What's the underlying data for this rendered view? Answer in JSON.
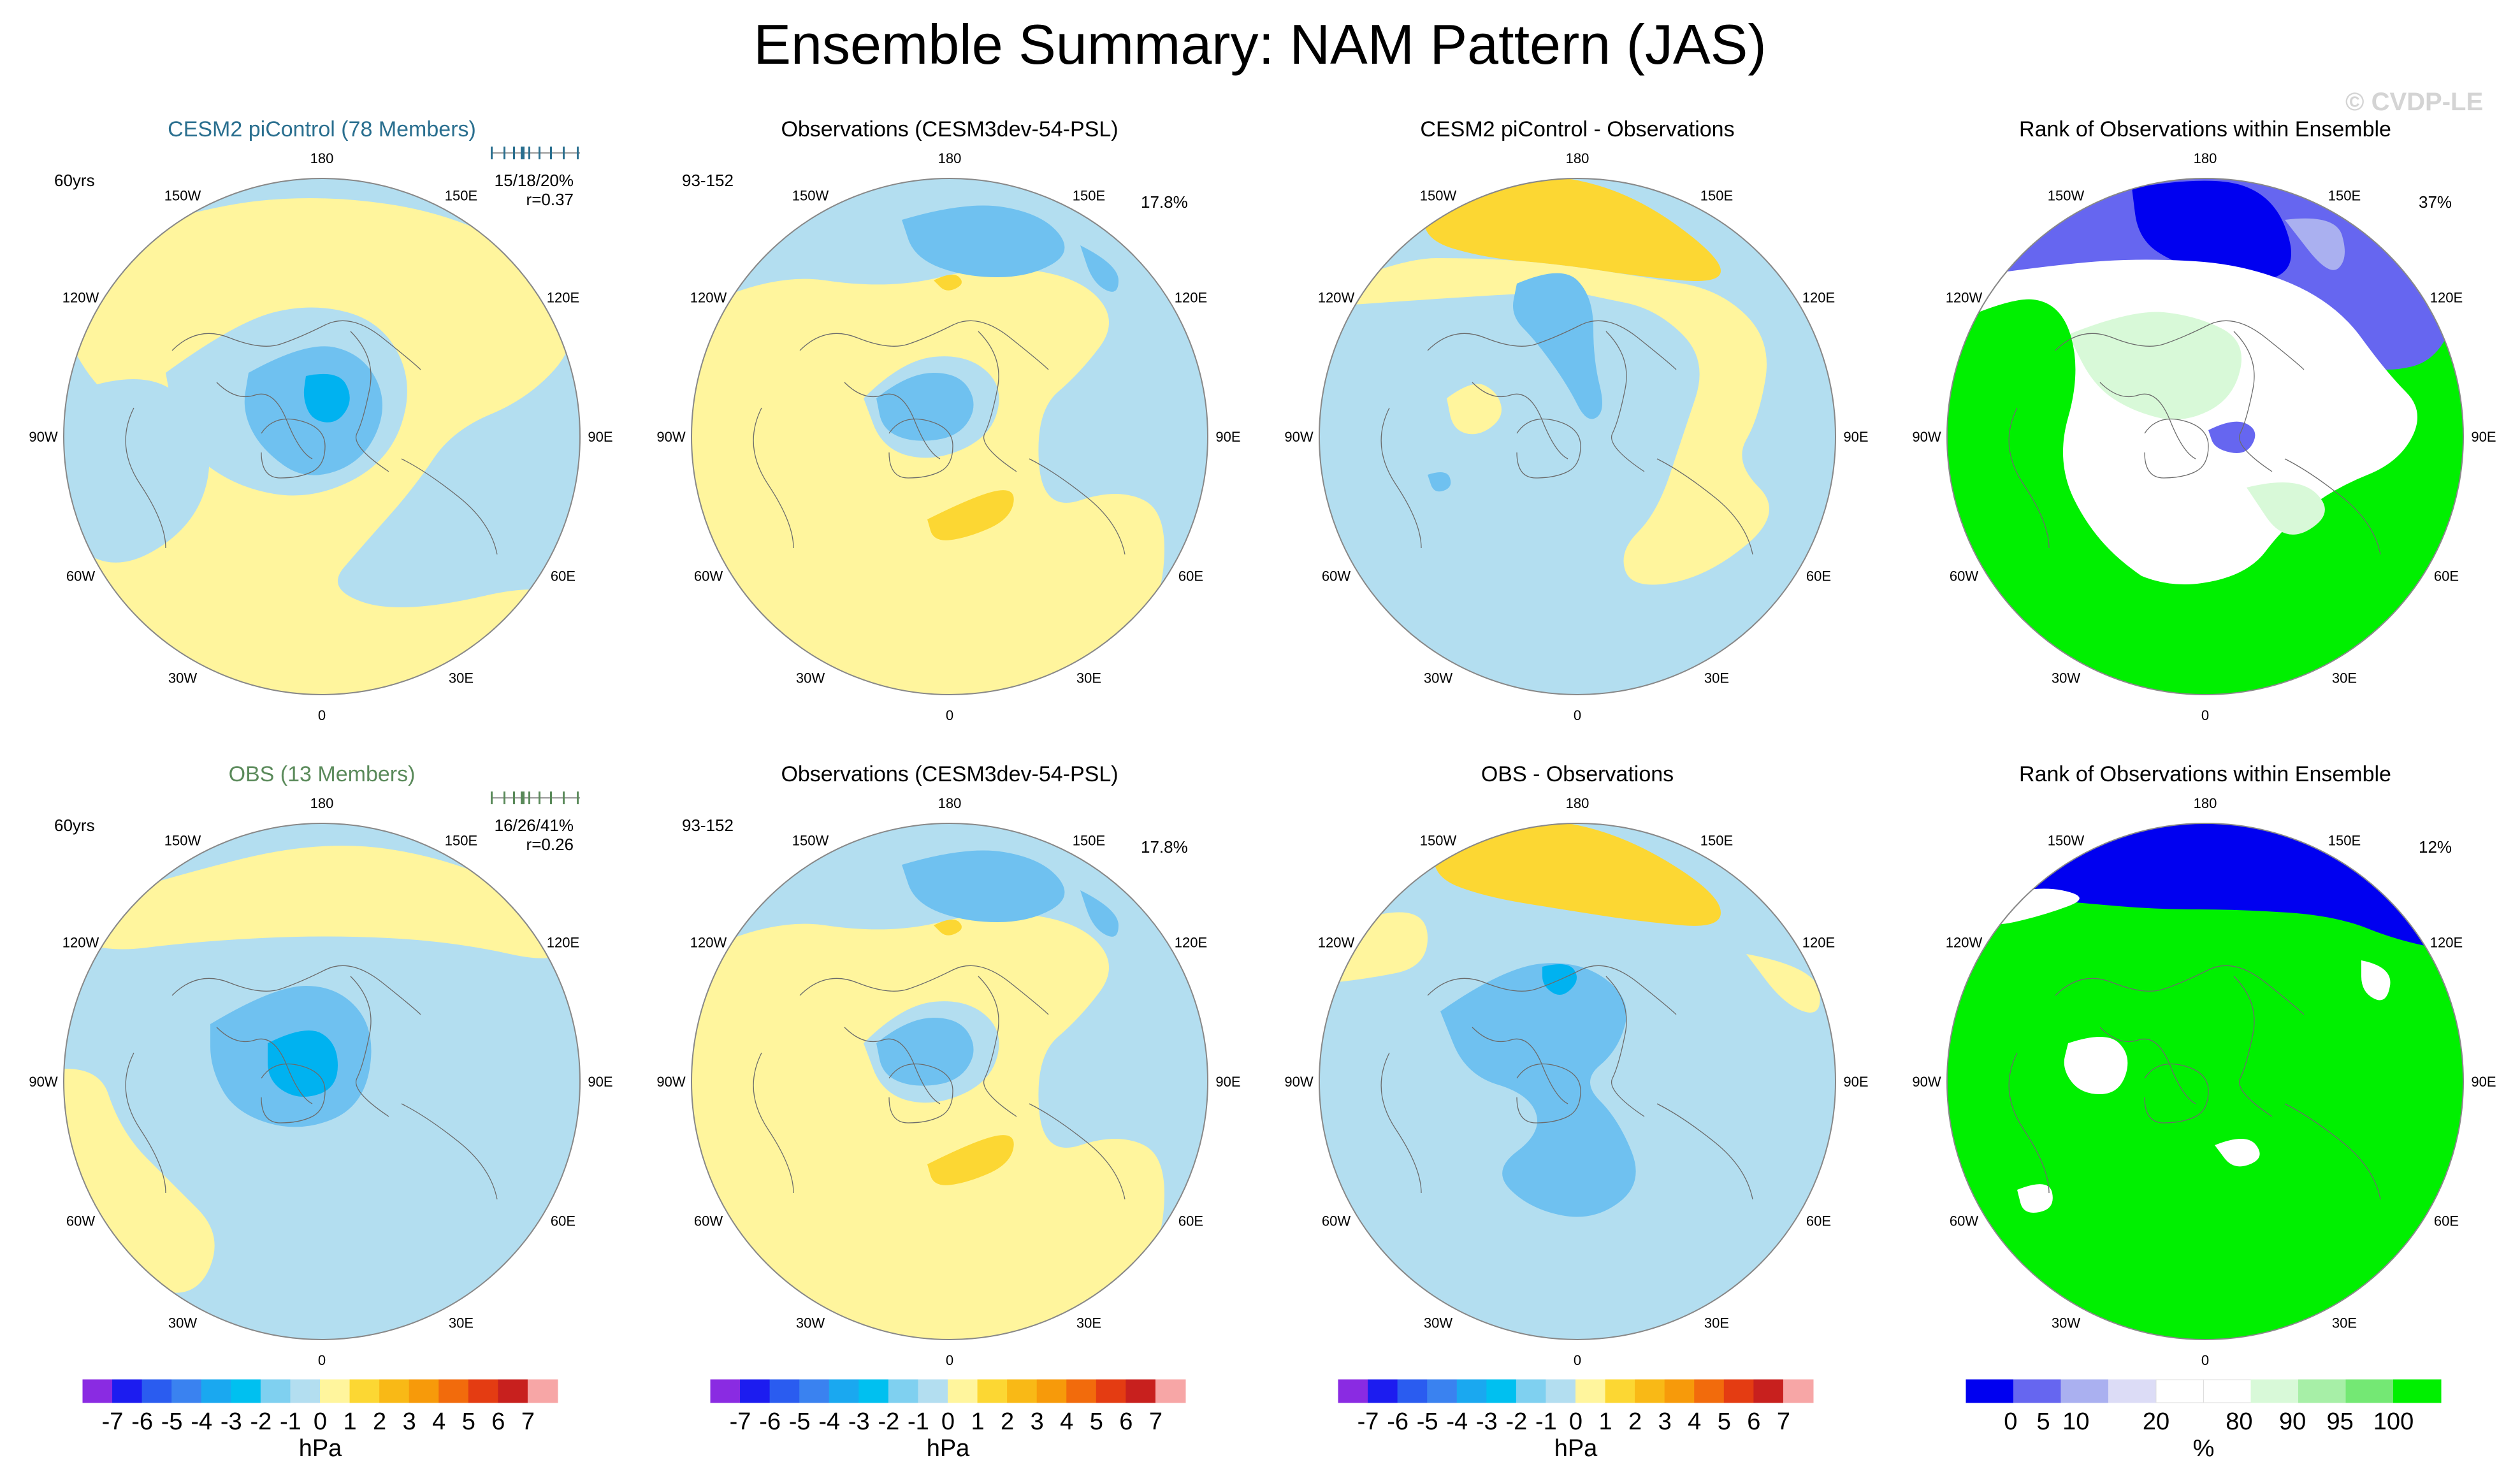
{
  "title": "Ensemble Summary: NAM Pattern (JAS)",
  "watermark": "© CVDP-LE",
  "colors": {
    "map_neg1": "#b3def0",
    "map_neg2": "#6fc1f0",
    "map_neg3": "#00b2f0",
    "map_pos1": "#fff59d",
    "map_pos2": "#fcd733",
    "rank_high": "#00f000",
    "rank_mid_high": "#d8f9d8",
    "rank_mid": "#ffffff",
    "rank_low": "#0000f0",
    "rank_low2": "#6666f0",
    "rank_low3": "#aab0f0"
  },
  "lon_labels": [
    "180",
    "150E",
    "120E",
    "90E",
    "60E",
    "30E",
    "0",
    "30W",
    "60W",
    "90W",
    "120W",
    "150W"
  ],
  "panels": [
    {
      "title": "CESM2 piControl (78 Members)",
      "title_color": "#2a6f8f",
      "kind": "model",
      "years": "60yrs",
      "stats": "15/18/20%",
      "corr": "r=0.37",
      "pct": ""
    },
    {
      "title": "Observations (CESM3dev-54-PSL)",
      "title_color": "#000000",
      "kind": "obs",
      "years": "93-152",
      "stats": "",
      "corr": "",
      "pct": "17.8%"
    },
    {
      "title": "CESM2 piControl - Observations",
      "title_color": "#000000",
      "kind": "diff",
      "years": "",
      "stats": "",
      "corr": "",
      "pct": ""
    },
    {
      "title": "Rank of Observations within Ensemble",
      "title_color": "#000000",
      "kind": "rank",
      "years": "",
      "stats": "",
      "corr": "",
      "pct": "37%"
    },
    {
      "title": "OBS (13 Members)",
      "title_color": "#5a8a5a",
      "kind": "model2",
      "years": "60yrs",
      "stats": "16/26/41%",
      "corr": "r=0.26",
      "pct": ""
    },
    {
      "title": "Observations (CESM3dev-54-PSL)",
      "title_color": "#000000",
      "kind": "obs",
      "years": "93-152",
      "stats": "",
      "corr": "",
      "pct": "17.8%"
    },
    {
      "title": "OBS - Observations",
      "title_color": "#000000",
      "kind": "diff2",
      "years": "",
      "stats": "",
      "corr": "",
      "pct": ""
    },
    {
      "title": "Rank of Observations within Ensemble",
      "title_color": "#000000",
      "kind": "rank2",
      "years": "",
      "stats": "",
      "corr": "",
      "pct": "12%"
    }
  ],
  "colorbar_hpa": {
    "colors": [
      "#8a2be2",
      "#1c1cf0",
      "#2a5cf0",
      "#3a82f0",
      "#1aa8f0",
      "#00c0f0",
      "#7fd0f0",
      "#b3def0",
      "#fff59d",
      "#fcd733",
      "#f9b916",
      "#f79a0a",
      "#f26b0c",
      "#e43c12",
      "#c8201e",
      "#f7a6a6"
    ],
    "ticks": [
      "-7",
      "-6",
      "-5",
      "-4",
      "-3",
      "-2",
      "-1",
      "0",
      "1",
      "2",
      "3",
      "4",
      "5",
      "6",
      "7"
    ],
    "unit": "hPa"
  },
  "colorbar_rank": {
    "colors": [
      "#0000f0",
      "#6666f0",
      "#aab0f0",
      "#dcdcf6",
      "#ffffff",
      "#ffffff",
      "#d8f9d8",
      "#a7efa7",
      "#74e874",
      "#00f000"
    ],
    "ticks": [
      "0",
      "5",
      "10",
      "20",
      "80",
      "90",
      "95",
      "100"
    ],
    "unit": "%"
  }
}
